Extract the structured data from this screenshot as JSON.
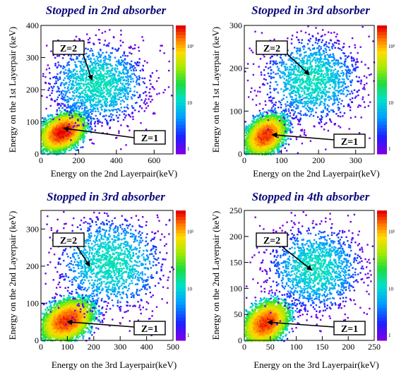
{
  "chart_data": [
    {
      "type": "heatmap",
      "title": "Stopped in 2nd absorber",
      "xlabel": "Energy on the 2nd Layerpair(keV)",
      "ylabel": "Energy on the 1st Layerpair (keV)",
      "xlim": [
        0,
        700
      ],
      "ylim": [
        0,
        400
      ],
      "xticks": [
        "0",
        "200",
        "400",
        "600"
      ],
      "yticks": [
        "0",
        "100",
        "200",
        "300",
        "400"
      ],
      "colorbar_ticks": [
        "1",
        "10",
        "10²"
      ],
      "annotations": [
        {
          "label": "Z=2",
          "points_to": [
            270,
            230
          ]
        },
        {
          "label": "Z=1",
          "points_to": [
            120,
            80
          ]
        }
      ],
      "clusters": [
        {
          "center": [
            110,
            70
          ],
          "spread": [
            55,
            25
          ],
          "peak_count": 300,
          "count": 4200
        },
        {
          "center": [
            300,
            220
          ],
          "spread": [
            130,
            70
          ],
          "peak_count": 12,
          "count": 1500
        }
      ]
    },
    {
      "type": "heatmap",
      "title": "Stopped in 3rd absorber",
      "xlabel": "Energy on the 2nd Layerpair(keV)",
      "ylabel": "Energy on the 1st Layerpair (keV)",
      "xlim": [
        0,
        350
      ],
      "ylim": [
        0,
        300
      ],
      "xticks": [
        "0",
        "100",
        "200",
        "300"
      ],
      "yticks": [
        "0",
        "100",
        "200",
        "300"
      ],
      "colorbar_ticks": [
        "1",
        "10",
        "10²"
      ],
      "annotations": [
        {
          "label": "Z=2",
          "points_to": [
            175,
            185
          ]
        },
        {
          "label": "Z=1",
          "points_to": [
            75,
            45
          ]
        }
      ],
      "clusters": [
        {
          "center": [
            55,
            45
          ],
          "spread": [
            25,
            20
          ],
          "peak_count": 250,
          "count": 4000
        },
        {
          "center": [
            180,
            175
          ],
          "spread": [
            65,
            55
          ],
          "peak_count": 12,
          "count": 1500
        }
      ]
    },
    {
      "type": "heatmap",
      "title": "Stopped in 3rd absorber",
      "xlabel": "Energy on the 3rd Layerpair(keV)",
      "ylabel": "Energy on the 2nd Layerpair (keV)",
      "xlim": [
        0,
        500
      ],
      "ylim": [
        0,
        350
      ],
      "xticks": [
        "0",
        "100",
        "200",
        "300",
        "400",
        "500"
      ],
      "yticks": [
        "0",
        "100",
        "200",
        "300"
      ],
      "colorbar_ticks": [
        "1",
        "10",
        "10²"
      ],
      "annotations": [
        {
          "label": "Z=2",
          "points_to": [
            185,
            200
          ]
        },
        {
          "label": "Z=1",
          "points_to": [
            100,
            50
          ]
        }
      ],
      "clusters": [
        {
          "center": [
            95,
            55
          ],
          "spread": [
            45,
            25
          ],
          "peak_count": 250,
          "count": 4200
        },
        {
          "center": [
            260,
            210
          ],
          "spread": [
            100,
            70
          ],
          "peak_count": 12,
          "count": 1500
        }
      ]
    },
    {
      "type": "heatmap",
      "title": "Stopped in 4th absorber",
      "xlabel": "Energy on the 3rd Layerpair(keV)",
      "ylabel": "Energy on the 2nd Layerpair (keV)",
      "xlim": [
        0,
        250
      ],
      "ylim": [
        0,
        250
      ],
      "xticks": [
        "0",
        "50",
        "100",
        "150",
        "200",
        "250"
      ],
      "yticks": [
        "0",
        "50",
        "100",
        "150",
        "200",
        "250"
      ],
      "colorbar_ticks": [
        "1",
        "10",
        "10²"
      ],
      "annotations": [
        {
          "label": "Z=2",
          "points_to": [
            130,
            135
          ]
        },
        {
          "label": "Z=1",
          "points_to": [
            45,
            35
          ]
        }
      ],
      "clusters": [
        {
          "center": [
            40,
            35
          ],
          "spread": [
            20,
            18
          ],
          "peak_count": 250,
          "count": 4000
        },
        {
          "center": [
            135,
            140
          ],
          "spread": [
            45,
            45
          ],
          "peak_count": 12,
          "count": 1500
        }
      ]
    }
  ]
}
